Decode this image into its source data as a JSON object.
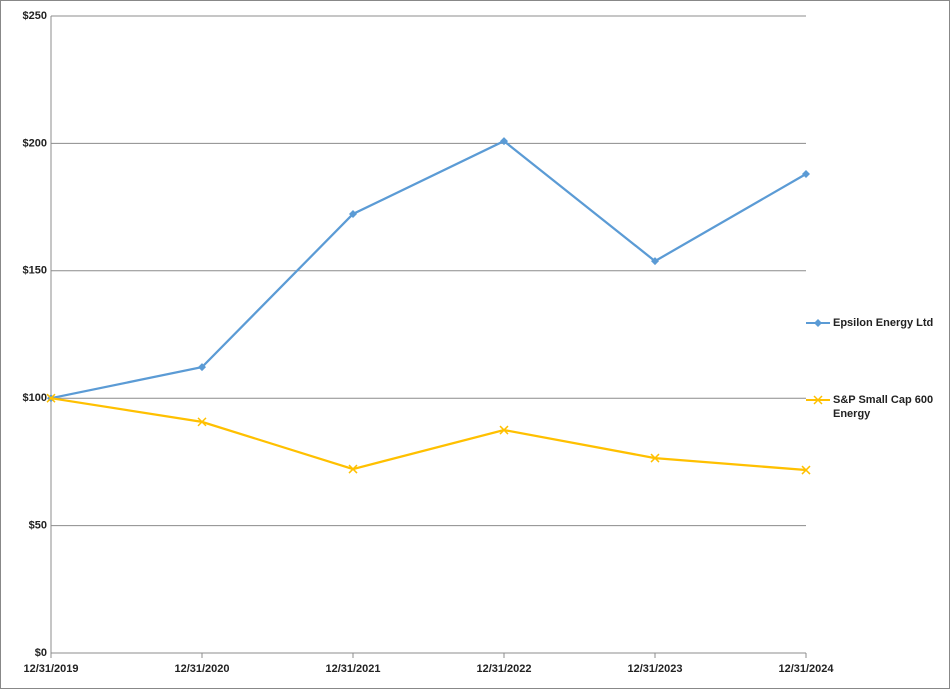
{
  "chart_data": {
    "type": "line",
    "categories": [
      "12/31/2019",
      "12/31/2020",
      "12/31/2021",
      "12/31/2022",
      "12/31/2023",
      "12/31/2024"
    ],
    "series": [
      {
        "name": "Epsilon Energy Ltd",
        "color": "#5b9bd5",
        "marker": "diamond",
        "values": [
          100,
          112.2,
          172.3,
          200.9,
          153.8,
          188.0
        ]
      },
      {
        "name": "S&P Small Cap 600 Energy",
        "color": "#ffc000",
        "marker": "x",
        "values": [
          100,
          90.7,
          72.2,
          87.5,
          76.5,
          71.8
        ]
      }
    ],
    "ylim": [
      0,
      250
    ],
    "yticks": [
      {
        "value": 0,
        "label": "$0"
      },
      {
        "value": 50,
        "label": "$50"
      },
      {
        "value": 100,
        "label": "$100"
      },
      {
        "value": 150,
        "label": "$150"
      },
      {
        "value": 200,
        "label": "$200"
      },
      {
        "value": 250,
        "label": "$250"
      }
    ],
    "grid": true,
    "legend": "right"
  }
}
